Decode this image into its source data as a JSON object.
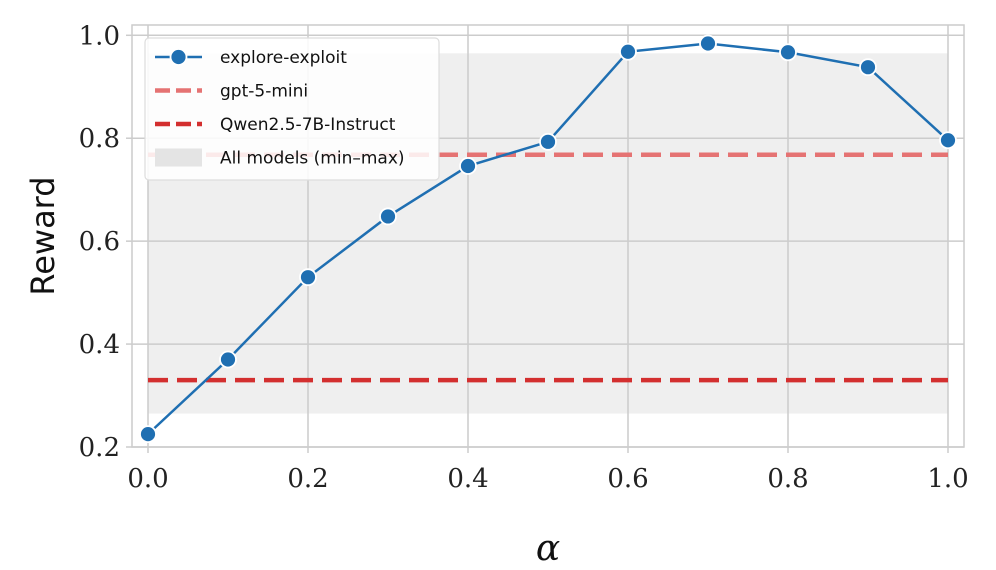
{
  "chart_data": {
    "type": "line",
    "xlabel": "α",
    "ylabel": "Reward",
    "xlim": [
      -0.02,
      1.02
    ],
    "ylim": [
      0.2,
      1.02
    ],
    "xticks": [
      0.0,
      0.2,
      0.4,
      0.6,
      0.8,
      1.0
    ],
    "yticks": [
      0.2,
      0.4,
      0.6,
      0.8,
      1.0
    ],
    "xtick_labels": [
      "0.0",
      "0.2",
      "0.4",
      "0.6",
      "0.8",
      "1.0"
    ],
    "ytick_labels": [
      "0.2",
      "0.4",
      "0.6",
      "0.8",
      "1.0"
    ],
    "grid": true,
    "legend_position": "top-left",
    "series": [
      {
        "name": "explore-exploit",
        "kind": "line-marker",
        "color": "#1f6fb2",
        "x": [
          0.0,
          0.1,
          0.2,
          0.3,
          0.4,
          0.5,
          0.6,
          0.7,
          0.8,
          0.9,
          1.0
        ],
        "y": [
          0.225,
          0.37,
          0.53,
          0.648,
          0.746,
          0.793,
          0.968,
          0.984,
          0.967,
          0.938,
          0.796
        ]
      },
      {
        "name": "gpt-5-mini",
        "kind": "hline-dashed",
        "color": "#e57373",
        "y": 0.768
      },
      {
        "name": "Qwen2.5-7B-Instruct",
        "kind": "hline-dashed",
        "color": "#d32f2f",
        "y": 0.33
      },
      {
        "name": "All models (min–max)",
        "kind": "band",
        "color": "#efefef",
        "ymin": 0.265,
        "ymax": 0.965
      }
    ]
  }
}
